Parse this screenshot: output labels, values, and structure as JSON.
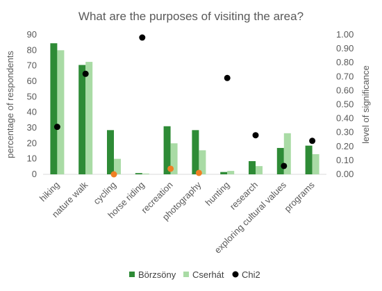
{
  "chart_data": {
    "type": "bar",
    "title": "What are the purposes of visiting the area?",
    "ylabel": "percentage of respondents",
    "y2label": "level of significance",
    "ylim": [
      0,
      90
    ],
    "y_ticks": [
      0,
      10,
      20,
      30,
      40,
      50,
      60,
      70,
      80,
      90
    ],
    "y2lim": [
      0,
      1
    ],
    "y2_ticks": [
      "0.00",
      "0.10",
      "0.20",
      "0.30",
      "0.40",
      "0.50",
      "0.60",
      "0.70",
      "0.80",
      "0.90",
      "1.00"
    ],
    "categories": [
      "hiking",
      "nature walk",
      "cycling",
      "horse riding",
      "recreation",
      "photography",
      "hunting",
      "research",
      "exploring cultural values",
      "programs"
    ],
    "series": [
      {
        "name": "Börzsöny",
        "type": "bar",
        "axis": "left",
        "color": "#2e8b36",
        "values": [
          84.5,
          70.5,
          28.5,
          0.8,
          31,
          28.5,
          1.5,
          8.5,
          17,
          18.5
        ]
      },
      {
        "name": "Cserhát",
        "type": "bar",
        "axis": "left",
        "color": "#a9dba5",
        "values": [
          80,
          72.5,
          10,
          0.5,
          20,
          15.5,
          2.2,
          5.3,
          26.5,
          13
        ]
      },
      {
        "name": "Chi2",
        "type": "scatter",
        "axis": "right",
        "color": "#000000",
        "values": [
          0.34,
          0.72,
          0.0,
          0.98,
          0.04,
          0.01,
          0.69,
          0.28,
          0.06,
          0.24
        ],
        "highlight_color": "#f07f24",
        "highlighted": [
          false,
          false,
          true,
          false,
          true,
          true,
          false,
          false,
          false,
          false
        ]
      }
    ],
    "legend_position": "bottom",
    "grid": false
  }
}
